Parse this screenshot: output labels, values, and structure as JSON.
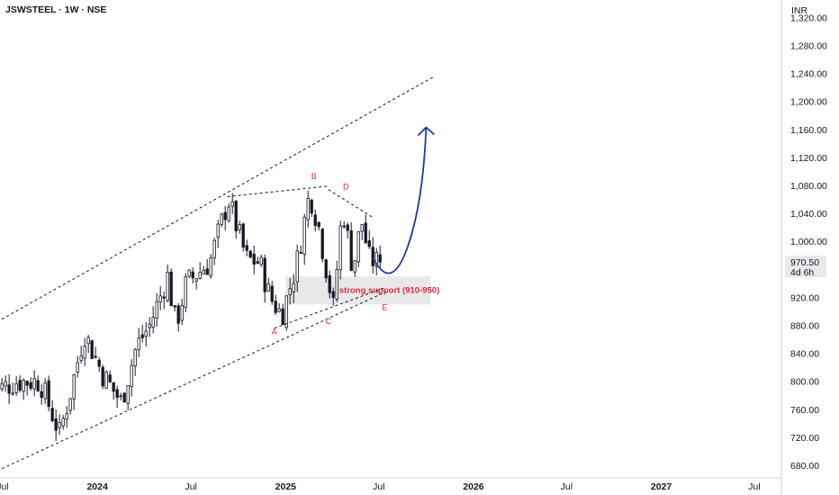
{
  "header": {
    "title": "JSWSTEEL · 1W · NSE",
    "currency": "INR"
  },
  "colors": {
    "candle": "#131722",
    "label": "#e0284a",
    "projection": "#1a3a9e",
    "support_zone": "#e8e8e8",
    "price_tag_bg": "#e9e9ec",
    "grid_axis": "#131722"
  },
  "chart_data": {
    "type": "candlestick",
    "timeframe": "1W",
    "symbol": "JSWSTEEL",
    "exchange": "NSE",
    "ylim": [
      662,
      1345
    ],
    "y_ticks": [
      "680.00",
      "720.00",
      "760.00",
      "800.00",
      "840.00",
      "880.00",
      "920.00",
      "1,000.00",
      "1,040.00",
      "1,080.00",
      "1,120.00",
      "1,160.00",
      "1,200.00",
      "1,240.00",
      "1,280.00",
      "1,320.00"
    ],
    "x_ticks": [
      {
        "label": "Jul",
        "date": "2023-07-01",
        "bold": false
      },
      {
        "label": "2024",
        "date": "2024-01-01",
        "bold": true
      },
      {
        "label": "Jul",
        "date": "2024-07-01",
        "bold": false
      },
      {
        "label": "2025",
        "date": "2025-01-01",
        "bold": true
      },
      {
        "label": "Jul",
        "date": "2025-07-01",
        "bold": false
      },
      {
        "label": "2026",
        "date": "2026-01-01",
        "bold": true
      },
      {
        "label": "Jul",
        "date": "2026-07-01",
        "bold": false
      },
      {
        "label": "2027",
        "date": "2027-01-01",
        "bold": true
      },
      {
        "label": "Jul",
        "date": "2027-07-01",
        "bold": false
      }
    ],
    "last_price": {
      "value": 970.5,
      "label": "970.50",
      "countdown": "4d 6h"
    },
    "price_path": [
      {
        "date": "2023-07-01",
        "price": 790
      },
      {
        "date": "2023-08-01",
        "price": 800
      },
      {
        "date": "2023-09-15",
        "price": 800
      },
      {
        "date": "2023-10-23",
        "price": 725
      },
      {
        "date": "2023-11-15",
        "price": 790
      },
      {
        "date": "2023-12-10",
        "price": 870
      },
      {
        "date": "2024-01-15",
        "price": 810
      },
      {
        "date": "2024-02-20",
        "price": 770
      },
      {
        "date": "2024-03-20",
        "price": 850
      },
      {
        "date": "2024-04-15",
        "price": 880
      },
      {
        "date": "2024-05-20",
        "price": 950
      },
      {
        "date": "2024-06-05",
        "price": 880
      },
      {
        "date": "2024-06-25",
        "price": 940
      },
      {
        "date": "2024-08-10",
        "price": 970
      },
      {
        "date": "2024-09-15",
        "price": 1060
      },
      {
        "date": "2024-10-20",
        "price": 975
      },
      {
        "date": "2024-11-15",
        "price": 970
      },
      {
        "date": "2024-12-05",
        "price": 920
      },
      {
        "date": "2024-12-28",
        "price": 895
      },
      {
        "date": "2025-01-25",
        "price": 965
      },
      {
        "date": "2025-02-20",
        "price": 1070
      },
      {
        "date": "2025-03-10",
        "price": 1020
      },
      {
        "date": "2025-04-07",
        "price": 905
      },
      {
        "date": "2025-04-25",
        "price": 1050
      },
      {
        "date": "2025-05-15",
        "price": 960
      },
      {
        "date": "2025-06-01",
        "price": 1030
      },
      {
        "date": "2025-06-16",
        "price": 975
      },
      {
        "date": "2025-06-30",
        "price": 970.5
      }
    ],
    "annotations": {
      "channel_upper": [
        {
          "date": "2023-06-20",
          "price": 885
        },
        {
          "date": "2025-10-15",
          "price": 1235
        }
      ],
      "channel_lower": [
        {
          "date": "2023-06-20",
          "price": 672
        },
        {
          "date": "2025-07-15",
          "price": 928
        }
      ],
      "line_BD": [
        {
          "date": "2024-09-10",
          "price": 1064
        },
        {
          "date": "2025-03-25",
          "price": 1079
        }
      ],
      "line_D_down": [
        {
          "date": "2025-03-25",
          "price": 1074
        },
        {
          "date": "2025-06-20",
          "price": 1034
        }
      ],
      "line_AC": [
        {
          "date": "2024-12-10",
          "price": 876
        },
        {
          "date": "2025-07-10",
          "price": 933
        }
      ],
      "support_zone": {
        "label": "strong support (910-950)",
        "low": 910,
        "high": 950,
        "from": "2025-01-01",
        "to": "2025-10-10"
      },
      "wave_labels": [
        {
          "label": "A",
          "date": "2024-12-10",
          "price": 867
        },
        {
          "label": "B",
          "date": "2025-02-25",
          "price": 1089
        },
        {
          "label": "C",
          "date": "2025-03-25",
          "price": 882
        },
        {
          "label": "D",
          "date": "2025-04-28",
          "price": 1074
        },
        {
          "label": "E",
          "date": "2025-07-12",
          "price": 902
        }
      ],
      "projection_arrow": [
        {
          "date": "2025-06-20",
          "price": 976
        },
        {
          "date": "2025-07-25",
          "price": 950
        },
        {
          "date": "2025-08-25",
          "price": 990
        },
        {
          "date": "2025-10-01",
          "price": 1163
        }
      ]
    }
  }
}
